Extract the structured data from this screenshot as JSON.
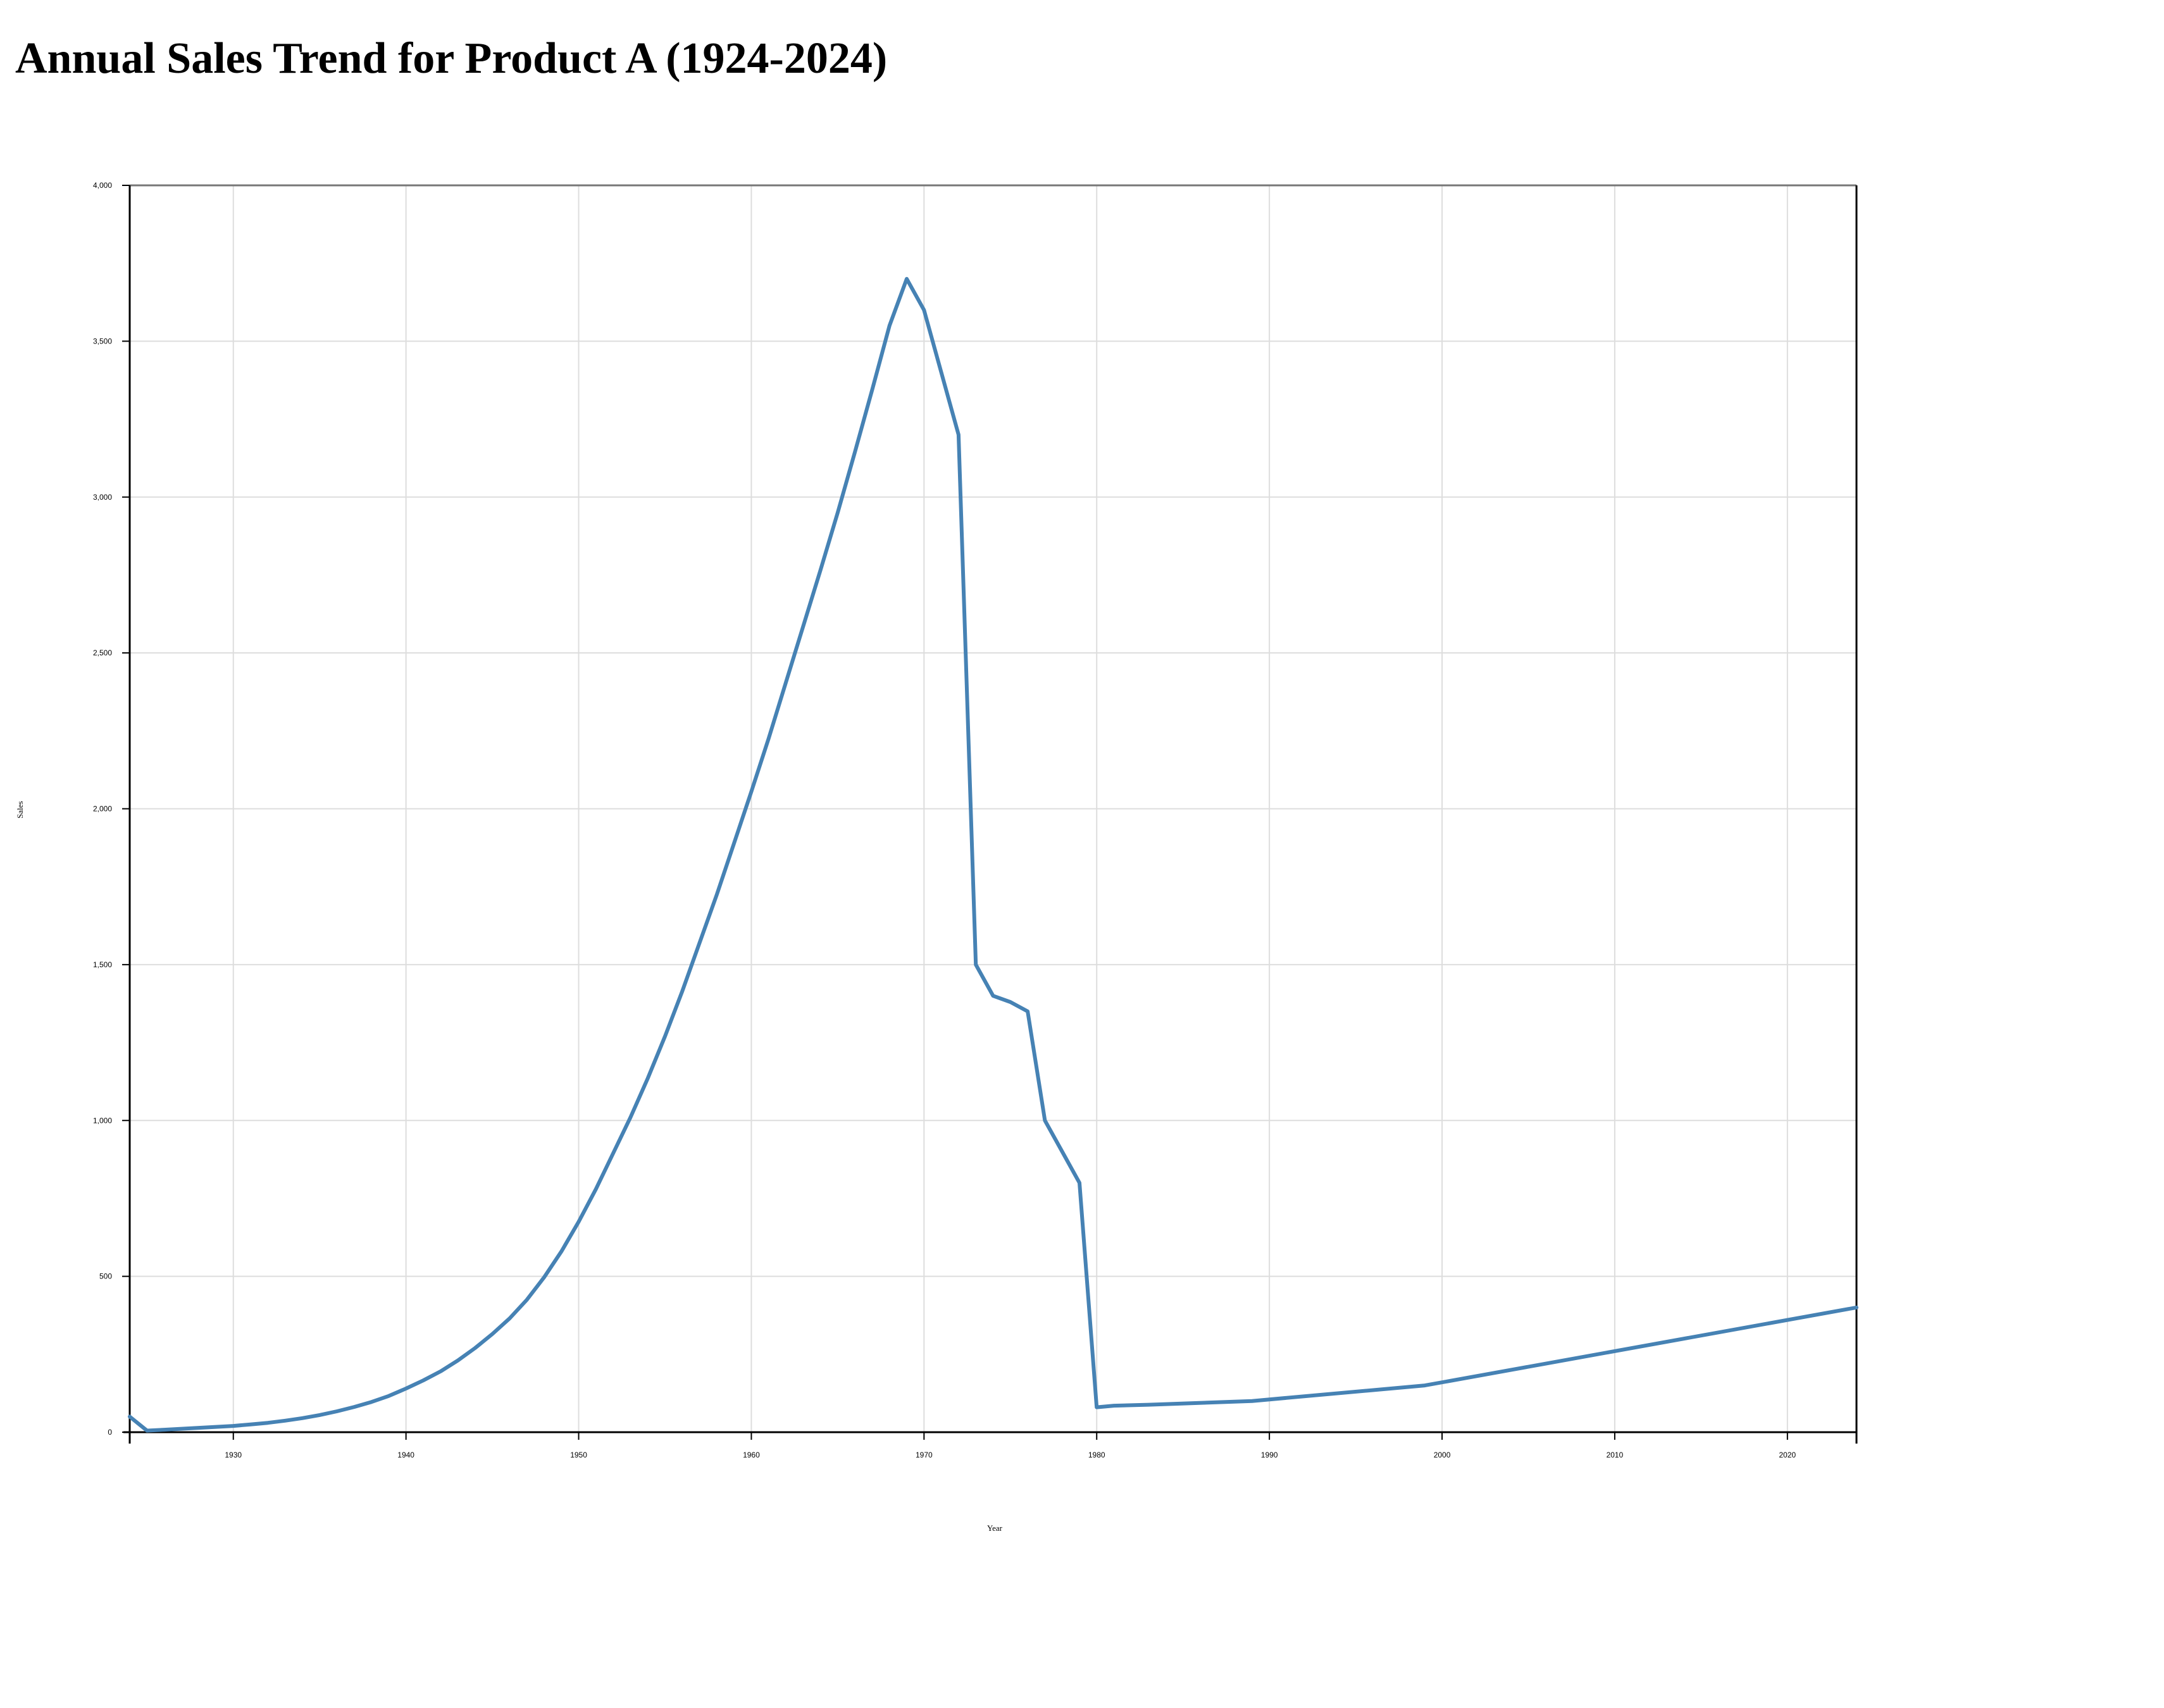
{
  "page": {
    "title": "Annual Sales Trend for Product A (1924-2024)"
  },
  "chart_data": {
    "type": "line",
    "title": "Annual Sales Trend for Product A (1924-2024)",
    "xlabel": "Year",
    "ylabel": "Sales",
    "xlim": [
      1924,
      2024
    ],
    "ylim": [
      0,
      4000
    ],
    "x_ticks": [
      1930,
      1940,
      1950,
      1960,
      1970,
      1980,
      1990,
      2000,
      2010,
      2020
    ],
    "y_ticks": [
      0,
      500,
      1000,
      1500,
      2000,
      2500,
      3000,
      3500,
      4000
    ],
    "x_tick_labels": [
      "1930",
      "1940",
      "1950",
      "1960",
      "1970",
      "1980",
      "1990",
      "2000",
      "2010",
      "2020"
    ],
    "y_tick_labels": [
      "0",
      "500",
      "1,000",
      "1,500",
      "2,000",
      "2,500",
      "3,000",
      "3,500",
      "4,000"
    ],
    "grid": true,
    "line_color": "#4682b4",
    "series": [
      {
        "x": [
          1924,
          1925,
          1926,
          1927,
          1928,
          1929,
          1930,
          1931,
          1932,
          1933,
          1934,
          1935,
          1936,
          1937,
          1938,
          1939,
          1940,
          1941,
          1942,
          1943,
          1944,
          1945,
          1946,
          1947,
          1948,
          1949,
          1950,
          1951,
          1952,
          1953,
          1954,
          1955,
          1956,
          1957,
          1958,
          1959,
          1960,
          1961,
          1962,
          1963,
          1964,
          1965,
          1966,
          1967,
          1968,
          1969,
          1970,
          1971,
          1972,
          1973,
          1974,
          1975,
          1976,
          1977,
          1978,
          1979,
          1980,
          1981,
          1983,
          1989,
          1999,
          2024
        ],
        "values": [
          50,
          5,
          8,
          11,
          14,
          17,
          20,
          25,
          30,
          37,
          45,
          55,
          67,
          81,
          97,
          116,
          140,
          166,
          195,
          230,
          270,
          315,
          365,
          425,
          497,
          580,
          675,
          780,
          895,
          1010,
          1135,
          1270,
          1415,
          1570,
          1725,
          1890,
          2055,
          2225,
          2405,
          2585,
          2765,
          2950,
          3145,
          3345,
          3550,
          3700,
          3600,
          3400,
          3200,
          1500,
          1400,
          1380,
          1350,
          1000,
          900,
          800,
          80,
          85,
          88,
          100,
          150,
          400
        ]
      }
    ]
  }
}
